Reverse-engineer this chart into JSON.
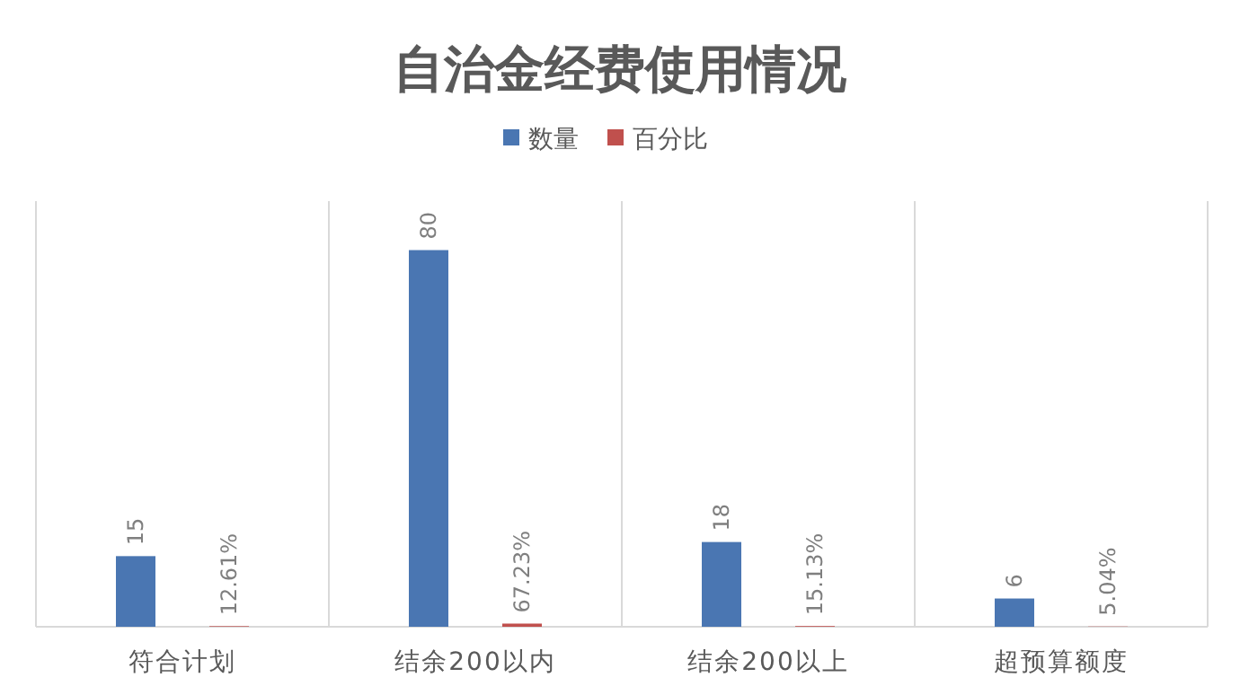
{
  "chart_data": {
    "type": "bar",
    "title": "自治金经费使用情况",
    "categories": [
      "符合计划",
      "结余200以内",
      "结余200以上",
      "超预算额度"
    ],
    "series": [
      {
        "name": "数量",
        "color": "#4a76b2",
        "values": [
          15,
          80,
          18,
          6
        ],
        "value_labels": [
          "15",
          "80",
          "18",
          "6"
        ]
      },
      {
        "name": "百分比",
        "color": "#c0504d",
        "values": [
          0.1261,
          0.6723,
          0.1513,
          0.0504
        ],
        "value_labels": [
          "12.61%",
          "67.23%",
          "15.13%",
          "5.04%"
        ]
      }
    ],
    "grid": "x",
    "legend": "top",
    "tick_labels": "x"
  }
}
